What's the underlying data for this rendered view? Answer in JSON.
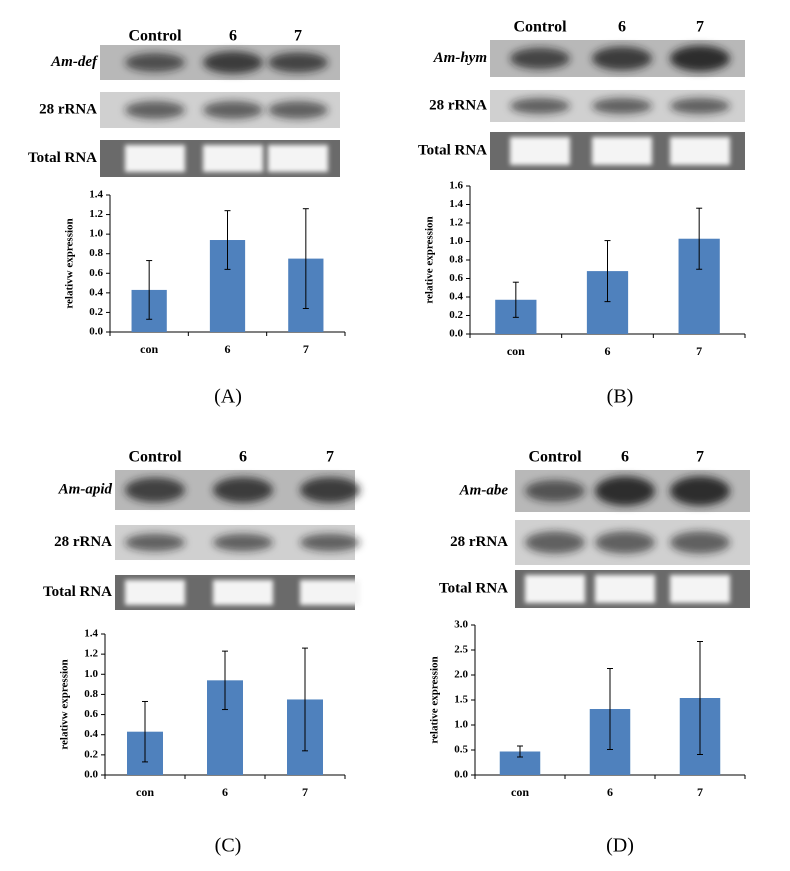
{
  "chart_data": [
    {
      "type": "bar",
      "panel_label": "(A)",
      "gel": {
        "lanes": [
          "Control",
          "6",
          "7"
        ],
        "rows": [
          "Am-def",
          "28 rRNA",
          "Total RNA"
        ]
      },
      "y_label": "relativw expression",
      "categories": [
        "con",
        "6",
        "7"
      ],
      "values": [
        0.43,
        0.94,
        0.75
      ],
      "errors": [
        0.3,
        0.3,
        0.51
      ],
      "color": "#4f81bd",
      "ylim": [
        0,
        1.4
      ],
      "yticks": [
        {
          "value": 0,
          "label": "0.0"
        },
        0.2,
        0.4,
        0.6,
        0.8,
        {
          "value": 1,
          "label": "1.0"
        },
        1.2,
        1.4
      ]
    },
    {
      "type": "bar",
      "panel_label": "(B)",
      "gel": {
        "lanes": [
          "Control",
          "6",
          "7"
        ],
        "rows": [
          "Am-hym",
          "28 rRNA",
          "Total RNA"
        ]
      },
      "y_label": "relative expression",
      "categories": [
        "con",
        "6",
        "7"
      ],
      "values": [
        0.37,
        0.68,
        1.03
      ],
      "errors": [
        0.19,
        0.33,
        0.33
      ],
      "color": "#4f81bd",
      "ylim": [
        0,
        1.6
      ],
      "yticks": [
        {
          "value": 0,
          "label": "0.0"
        },
        0.2,
        0.4,
        0.6,
        0.8,
        {
          "value": 1,
          "label": "1.0"
        },
        1.2,
        1.4,
        1.6
      ]
    },
    {
      "type": "bar",
      "panel_label": "(C)",
      "gel": {
        "lanes": [
          "Control",
          "6",
          "7"
        ],
        "rows": [
          "Am-apid",
          "28 rRNA",
          "Total RNA"
        ]
      },
      "y_label": "relativw expression",
      "categories": [
        "con",
        "6",
        "7"
      ],
      "values": [
        0.43,
        0.94,
        0.75
      ],
      "errors": [
        0.3,
        0.29,
        0.51
      ],
      "color": "#4f81bd",
      "ylim": [
        0,
        1.4
      ],
      "yticks": [
        {
          "value": 0,
          "label": "0.0"
        },
        0.2,
        0.4,
        0.6,
        0.8,
        {
          "value": 1,
          "label": "1.0"
        },
        1.2,
        1.4
      ]
    },
    {
      "type": "bar",
      "panel_label": "(D)",
      "gel": {
        "lanes": [
          "Control",
          "6",
          "7"
        ],
        "rows": [
          "Am-abe",
          "28 rRNA",
          "Total RNA"
        ]
      },
      "y_label": "relative expression",
      "categories": [
        "con",
        "6",
        "7"
      ],
      "values": [
        0.47,
        1.32,
        1.54
      ],
      "errors": [
        0.11,
        0.81,
        1.13
      ],
      "color": "#4f81bd",
      "ylim": [
        0,
        3
      ],
      "yticks": [
        {
          "value": 0,
          "label": "0.0"
        },
        0.5,
        {
          "value": 1,
          "label": "1.0"
        },
        1.5,
        {
          "value": 2,
          "label": "2.0"
        },
        2.5,
        {
          "value": 3,
          "label": "3.0"
        }
      ]
    }
  ]
}
